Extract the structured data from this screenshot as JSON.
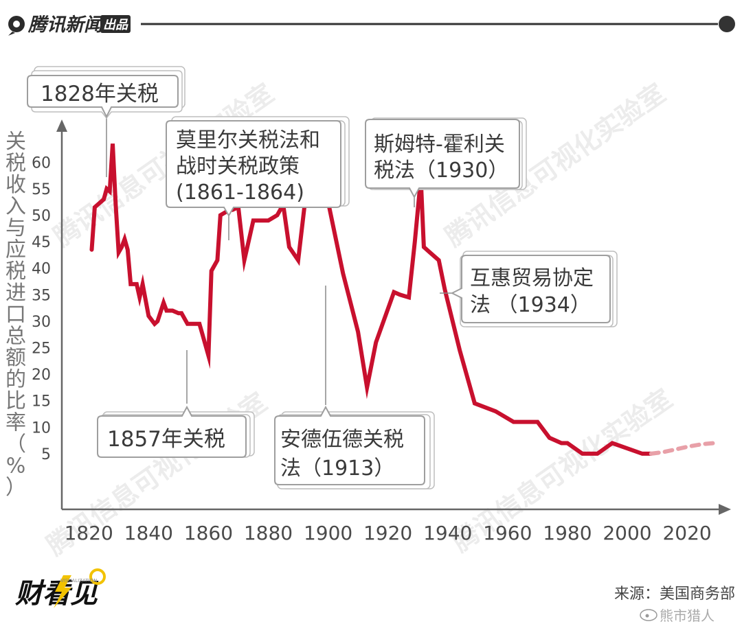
{
  "header": {
    "brand": "腾讯新闻",
    "badge": "出品"
  },
  "footer": {
    "logo": "财看见",
    "logo_sub": "VISUALIZATION",
    "source": "来源：美国商务部",
    "weibo_mark": "熊市猎人"
  },
  "watermark": "腾讯信息可视化实验室",
  "colors": {
    "line": "#c8102e",
    "projection": "#e8a0a8",
    "axis": "#666666",
    "header_rule": "#333333"
  },
  "chart_data": {
    "type": "line",
    "ylabel": "关税收入与应税进口总额的比率（%）",
    "xlabel": "",
    "x_ticks": [
      1820,
      1840,
      1860,
      1880,
      1900,
      1920,
      1940,
      1960,
      1980,
      2000,
      2020
    ],
    "y_ticks": [
      5,
      10,
      15,
      20,
      25,
      30,
      35,
      40,
      45,
      50,
      55,
      60
    ],
    "xlim": [
      1811,
      2031
    ],
    "ylim": [
      -5.5,
      66
    ],
    "series": [
      {
        "x": [
          1821,
          1822,
          1825,
          1826,
          1827,
          1828,
          1829,
          1830,
          1831,
          1832,
          1833,
          1834,
          1836,
          1837,
          1838,
          1840,
          1842,
          1843,
          1845,
          1846,
          1848,
          1850,
          1851,
          1853,
          1857,
          1858,
          1860,
          1861,
          1863,
          1864,
          1867,
          1868,
          1870,
          1872,
          1873,
          1875,
          1880,
          1883,
          1885,
          1887,
          1890,
          1893,
          1895,
          1897,
          1900,
          1905,
          1910,
          1913,
          1916,
          1922,
          1924,
          1927,
          1929,
          1931,
          1932,
          1934,
          1937,
          1939,
          1944,
          1949,
          1956,
          1962,
          1966,
          1970,
          1974,
          1978,
          1980,
          1985,
          1990,
          1995,
          2000,
          2005,
          2008
        ],
        "y": [
          43.5,
          51.5,
          53.0,
          55.0,
          54.5,
          63.5,
          52.0,
          43.0,
          44.0,
          45.5,
          43.5,
          37.0,
          37.0,
          34.5,
          37.0,
          31.0,
          29.5,
          30.0,
          33.5,
          32.0,
          32.0,
          31.5,
          31.5,
          29.5,
          29.5,
          27.5,
          23.5,
          39.5,
          41.5,
          50.0,
          51.0,
          51.0,
          51.5,
          41.5,
          44.0,
          49.0,
          49.0,
          50.0,
          52.0,
          44.0,
          41.5,
          56.0,
          55.0,
          53.5,
          52.5,
          39.0,
          28.0,
          17.5,
          26.0,
          35.5,
          35.0,
          34.5,
          45.0,
          57.0,
          44.0,
          43.0,
          41.5,
          36.0,
          24.5,
          14.5,
          13.0,
          11.0,
          11.0,
          11.0,
          8.0,
          7.0,
          7.0,
          5.0,
          5.0,
          7.0,
          6.0,
          5.0,
          5.0
        ]
      },
      {
        "x": [
          2008,
          2012,
          2016,
          2020,
          2025,
          2029
        ],
        "y": [
          5.0,
          5.3,
          5.8,
          6.3,
          6.8,
          7.0
        ]
      }
    ],
    "annotations": [
      {
        "text_lines": [
          "1828年关税"
        ],
        "x": 1828,
        "y": 63.5,
        "pos": "above"
      },
      {
        "text_lines": [
          "莫里尔关税法和",
          "战时关税政策",
          "(1861-1864)"
        ],
        "x": 1869,
        "y": 51.5,
        "pos": "above"
      },
      {
        "text_lines": [
          "斯姆特-霍利关",
          "税法（1930）"
        ],
        "x": 1931,
        "y": 57.0,
        "pos": "above"
      },
      {
        "text_lines": [
          "互惠贸易协定",
          "法 （1934）"
        ],
        "x": 1939,
        "y": 41.5,
        "pos": "right"
      },
      {
        "text_lines": [
          "1857年关税"
        ],
        "x": 1858,
        "y": 27.5,
        "pos": "below"
      },
      {
        "text_lines": [
          "安德伍德关税",
          "法（1913）"
        ],
        "x": 1913,
        "y": 46.0,
        "pos": "below"
      }
    ]
  }
}
